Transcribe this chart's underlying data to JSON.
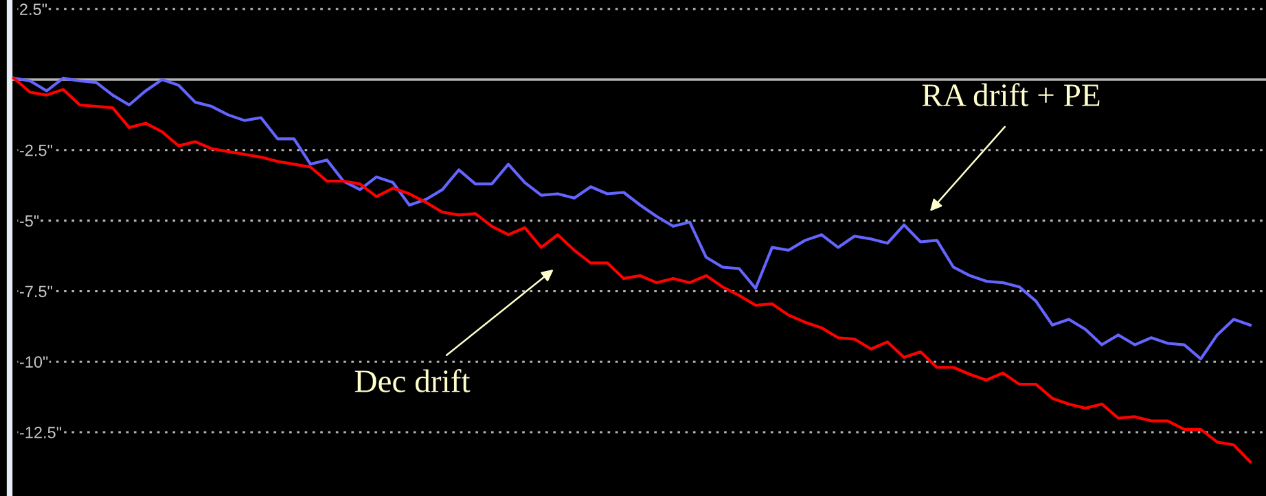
{
  "chart_data": {
    "type": "line",
    "categories": [
      null,
      null,
      null,
      null,
      null,
      null,
      null,
      null,
      null,
      null,
      null,
      null,
      null,
      null,
      null,
      null,
      null,
      null,
      null,
      null,
      null,
      null,
      null,
      null,
      null,
      null,
      null,
      null,
      null,
      null,
      null,
      null,
      null,
      null,
      null,
      null,
      null,
      null,
      null,
      null,
      null,
      null,
      null,
      null,
      null,
      null,
      null,
      null,
      null,
      null,
      null,
      null,
      null,
      null,
      null,
      null,
      null,
      null,
      null,
      null,
      null,
      null,
      null,
      null,
      null,
      null,
      null,
      null,
      null,
      null,
      null,
      null,
      null,
      null,
      null,
      null
    ],
    "series": [
      {
        "color": "#6464ff",
        "values": [
          0.05,
          -0.05,
          -0.4,
          0.05,
          -0.05,
          -0.1,
          -0.55,
          -0.9,
          -0.4,
          0,
          -0.2,
          -0.8,
          -0.95,
          -1.25,
          -1.45,
          -1.35,
          -2.1,
          -2.1,
          -3.0,
          -2.85,
          -3.6,
          -3.9,
          -3.45,
          -3.65,
          -4.45,
          -4.25,
          -3.9,
          -3.2,
          -3.7,
          -3.7,
          -3.0,
          -3.65,
          -4.1,
          -4.05,
          -4.2,
          -3.8,
          -4.05,
          -4.0,
          -4.45,
          -4.85,
          -5.2,
          -5.05,
          -6.3,
          -6.65,
          -6.7,
          -7.4,
          -5.95,
          -6.05,
          -5.7,
          -5.5,
          -5.95,
          -5.55,
          -5.65,
          -5.8,
          -5.15,
          -5.75,
          -5.7,
          -6.65,
          -6.95,
          -7.15,
          -7.2,
          -7.35,
          -7.85,
          -8.7,
          -8.5,
          -8.85,
          -9.4,
          -9.05,
          -9.4,
          -9.15,
          -9.35,
          -9.4,
          -9.9,
          -9.05,
          -8.5,
          -8.7
        ]
      },
      {
        "color": "#ff0000",
        "values": [
          0.05,
          -0.45,
          -0.55,
          -0.35,
          -0.9,
          -0.95,
          -1.0,
          -1.7,
          -1.55,
          -1.85,
          -2.35,
          -2.2,
          -2.45,
          -2.55,
          -2.65,
          -2.75,
          -2.9,
          -3.0,
          -3.1,
          -3.6,
          -3.6,
          -3.7,
          -4.15,
          -3.85,
          -4.05,
          -4.35,
          -4.7,
          -4.8,
          -4.75,
          -5.2,
          -5.5,
          -5.25,
          -5.95,
          -5.5,
          -6.05,
          -6.5,
          -6.5,
          -7.05,
          -6.95,
          -7.2,
          -7.05,
          -7.2,
          -6.95,
          -7.35,
          -7.65,
          -8.0,
          -7.95,
          -8.35,
          -8.6,
          -8.8,
          -9.15,
          -9.2,
          -9.55,
          -9.3,
          -9.85,
          -9.65,
          -10.2,
          -10.2,
          -10.45,
          -10.65,
          -10.4,
          -10.8,
          -10.8,
          -11.3,
          -11.5,
          -11.65,
          -11.5,
          -12.0,
          -11.95,
          -12.1,
          -12.1,
          -12.4,
          -12.4,
          -12.85,
          -12.95,
          -13.55
        ]
      }
    ],
    "ylim": [
      -14.76,
      2.82
    ],
    "yticks": [
      {
        "value": 2.5,
        "label": "2.5\""
      },
      {
        "value": -2.5,
        "label": "-2.5\""
      },
      {
        "value": -5,
        "label": "-5\""
      },
      {
        "value": -7.5,
        "label": "-7.5\""
      },
      {
        "value": -10,
        "label": "-10\""
      },
      {
        "value": -12.5,
        "label": "-12.5\""
      }
    ],
    "grid": "y",
    "annotations": [
      "RA drift + PE",
      "Dec drift"
    ],
    "ref_lines": [
      {
        "axis": "y",
        "value": 0,
        "color": "#b4b4b4",
        "line_style": "solid"
      }
    ],
    "marker": "none",
    "line_style": "solid"
  }
}
